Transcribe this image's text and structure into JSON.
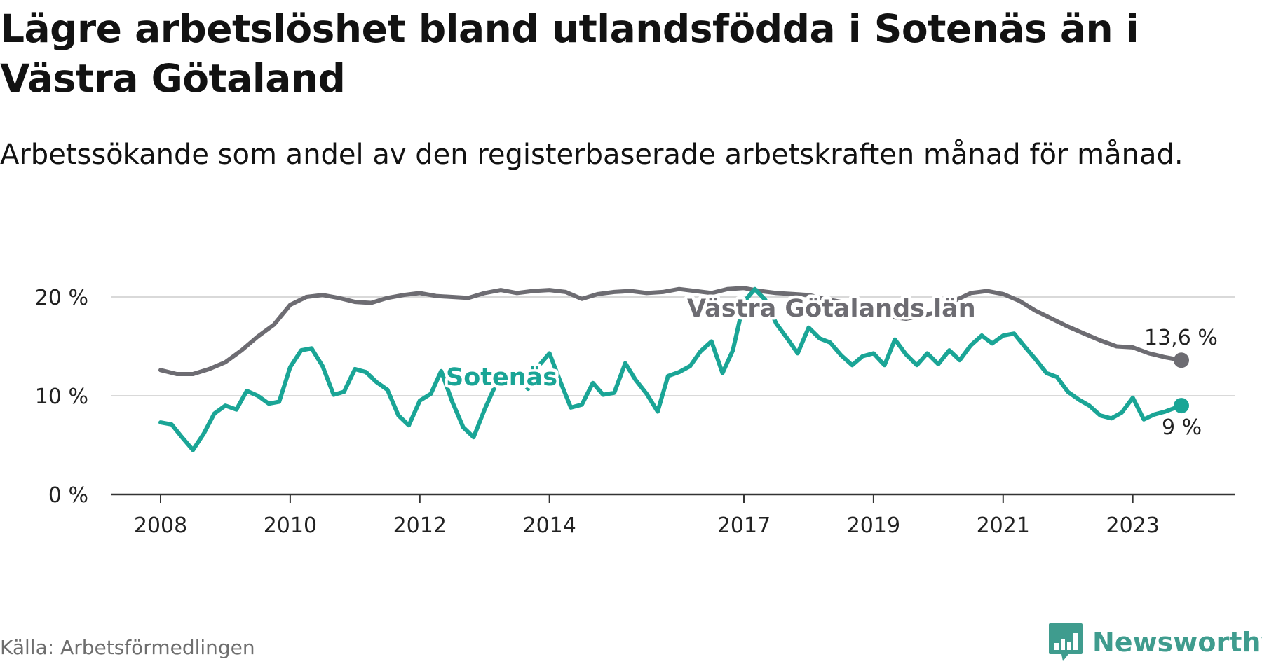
{
  "header": {
    "title": "Lägre arbetslöshet bland utlandsfödda i Sotenäs än i Västra Götaland",
    "subtitle": "Arbetssökande som andel av den registerbaserade arbetskraften månad för månad."
  },
  "footer": {
    "source": "Källa: Arbetsförmedlingen",
    "brand": "Newsworthy"
  },
  "colors": {
    "region": "#6d6c72",
    "municipality": "#1aa596",
    "grid": "#d9d9d9",
    "axis": "#333333",
    "brand": "#3f9c8e"
  },
  "chart_data": {
    "type": "line",
    "title": "Lägre arbetslöshet bland utlandsfödda i Sotenäs än i Västra Götaland",
    "subtitle": "Arbetssökande som andel av den registerbaserade arbetskraften månad för månad.",
    "xlabel": "",
    "ylabel": "",
    "ylim": [
      0,
      22
    ],
    "xlim": [
      2007.8,
      2024.1
    ],
    "y_ticks": [
      0,
      10,
      20
    ],
    "y_tick_labels": [
      "0 %",
      "10 %",
      "20 %"
    ],
    "x_ticks": [
      2008,
      2010,
      2012,
      2014,
      2017,
      2019,
      2021,
      2023
    ],
    "x_tick_labels": [
      "2008",
      "2010",
      "2012",
      "2014",
      "2017",
      "2019",
      "2021",
      "2023"
    ],
    "grid": true,
    "series": [
      {
        "name": "Västra Götalands län",
        "label": "Västra Götalands län",
        "color": "#6d6c72",
        "end_label": "13,6 %",
        "points": [
          [
            2008.0,
            12.6
          ],
          [
            2008.25,
            12.2
          ],
          [
            2008.5,
            12.2
          ],
          [
            2008.75,
            12.7
          ],
          [
            2009.0,
            13.4
          ],
          [
            2009.25,
            14.6
          ],
          [
            2009.5,
            16.0
          ],
          [
            2009.75,
            17.2
          ],
          [
            2010.0,
            19.2
          ],
          [
            2010.25,
            20.0
          ],
          [
            2010.5,
            20.2
          ],
          [
            2010.75,
            19.9
          ],
          [
            2011.0,
            19.5
          ],
          [
            2011.25,
            19.4
          ],
          [
            2011.5,
            19.9
          ],
          [
            2011.75,
            20.2
          ],
          [
            2012.0,
            20.4
          ],
          [
            2012.25,
            20.1
          ],
          [
            2012.5,
            20.0
          ],
          [
            2012.75,
            19.9
          ],
          [
            2013.0,
            20.4
          ],
          [
            2013.25,
            20.7
          ],
          [
            2013.5,
            20.4
          ],
          [
            2013.75,
            20.6
          ],
          [
            2014.0,
            20.7
          ],
          [
            2014.25,
            20.5
          ],
          [
            2014.5,
            19.8
          ],
          [
            2014.75,
            20.3
          ],
          [
            2015.0,
            20.5
          ],
          [
            2015.25,
            20.6
          ],
          [
            2015.5,
            20.4
          ],
          [
            2015.75,
            20.5
          ],
          [
            2016.0,
            20.8
          ],
          [
            2016.25,
            20.6
          ],
          [
            2016.5,
            20.4
          ],
          [
            2016.75,
            20.8
          ],
          [
            2017.0,
            20.9
          ],
          [
            2017.25,
            20.6
          ],
          [
            2017.5,
            20.4
          ],
          [
            2017.75,
            20.3
          ],
          [
            2018.0,
            20.2
          ],
          [
            2018.25,
            19.8
          ],
          [
            2018.5,
            19.5
          ],
          [
            2018.75,
            18.9
          ],
          [
            2019.0,
            18.6
          ],
          [
            2019.25,
            18.0
          ],
          [
            2019.5,
            17.8
          ],
          [
            2019.75,
            18.1
          ],
          [
            2020.0,
            18.5
          ],
          [
            2020.25,
            19.6
          ],
          [
            2020.5,
            20.4
          ],
          [
            2020.75,
            20.6
          ],
          [
            2021.0,
            20.3
          ],
          [
            2021.25,
            19.6
          ],
          [
            2021.5,
            18.6
          ],
          [
            2021.75,
            17.8
          ],
          [
            2022.0,
            17.0
          ],
          [
            2022.25,
            16.3
          ],
          [
            2022.5,
            15.6
          ],
          [
            2022.75,
            15.0
          ],
          [
            2023.0,
            14.9
          ],
          [
            2023.25,
            14.3
          ],
          [
            2023.5,
            13.9
          ],
          [
            2023.75,
            13.6
          ]
        ]
      },
      {
        "name": "Sotenäs",
        "label": "Sotenäs",
        "color": "#1aa596",
        "end_label": "9 %",
        "points": [
          [
            2008.0,
            7.3
          ],
          [
            2008.17,
            7.1
          ],
          [
            2008.33,
            5.8
          ],
          [
            2008.5,
            4.5
          ],
          [
            2008.67,
            6.2
          ],
          [
            2008.83,
            8.2
          ],
          [
            2009.0,
            9.0
          ],
          [
            2009.17,
            8.6
          ],
          [
            2009.33,
            10.5
          ],
          [
            2009.5,
            10.0
          ],
          [
            2009.67,
            9.2
          ],
          [
            2009.83,
            9.4
          ],
          [
            2010.0,
            12.9
          ],
          [
            2010.17,
            14.6
          ],
          [
            2010.33,
            14.8
          ],
          [
            2010.5,
            13.0
          ],
          [
            2010.67,
            10.1
          ],
          [
            2010.83,
            10.4
          ],
          [
            2011.0,
            12.7
          ],
          [
            2011.17,
            12.4
          ],
          [
            2011.33,
            11.4
          ],
          [
            2011.5,
            10.6
          ],
          [
            2011.67,
            8.0
          ],
          [
            2011.83,
            7.0
          ],
          [
            2012.0,
            9.5
          ],
          [
            2012.17,
            10.2
          ],
          [
            2012.33,
            12.5
          ],
          [
            2012.5,
            9.4
          ],
          [
            2012.67,
            6.8
          ],
          [
            2012.83,
            5.8
          ],
          [
            2013.0,
            8.6
          ],
          [
            2013.17,
            11.1
          ],
          [
            2013.33,
            11.4
          ],
          [
            2013.5,
            12.1
          ],
          [
            2013.67,
            10.7
          ],
          [
            2013.83,
            13.0
          ],
          [
            2014.0,
            14.3
          ],
          [
            2014.17,
            11.4
          ],
          [
            2014.33,
            8.8
          ],
          [
            2014.5,
            9.1
          ],
          [
            2014.67,
            11.3
          ],
          [
            2014.83,
            10.1
          ],
          [
            2015.0,
            10.3
          ],
          [
            2015.17,
            13.3
          ],
          [
            2015.33,
            11.6
          ],
          [
            2015.5,
            10.2
          ],
          [
            2015.67,
            8.4
          ],
          [
            2015.83,
            12.0
          ],
          [
            2016.0,
            12.4
          ],
          [
            2016.17,
            13.0
          ],
          [
            2016.33,
            14.5
          ],
          [
            2016.5,
            15.5
          ],
          [
            2016.67,
            12.3
          ],
          [
            2016.83,
            14.6
          ],
          [
            2017.0,
            19.5
          ],
          [
            2017.17,
            20.8
          ],
          [
            2017.33,
            19.7
          ],
          [
            2017.5,
            17.3
          ],
          [
            2017.67,
            15.8
          ],
          [
            2017.83,
            14.3
          ],
          [
            2018.0,
            16.9
          ],
          [
            2018.17,
            15.8
          ],
          [
            2018.33,
            15.4
          ],
          [
            2018.5,
            14.1
          ],
          [
            2018.67,
            13.1
          ],
          [
            2018.83,
            14.0
          ],
          [
            2019.0,
            14.3
          ],
          [
            2019.17,
            13.1
          ],
          [
            2019.33,
            15.7
          ],
          [
            2019.5,
            14.2
          ],
          [
            2019.67,
            13.1
          ],
          [
            2019.83,
            14.3
          ],
          [
            2020.0,
            13.2
          ],
          [
            2020.17,
            14.6
          ],
          [
            2020.33,
            13.6
          ],
          [
            2020.5,
            15.1
          ],
          [
            2020.67,
            16.1
          ],
          [
            2020.83,
            15.3
          ],
          [
            2021.0,
            16.1
          ],
          [
            2021.17,
            16.3
          ],
          [
            2021.33,
            15.0
          ],
          [
            2021.5,
            13.7
          ],
          [
            2021.67,
            12.3
          ],
          [
            2021.83,
            11.9
          ],
          [
            2022.0,
            10.4
          ],
          [
            2022.17,
            9.6
          ],
          [
            2022.33,
            9.0
          ],
          [
            2022.5,
            8.0
          ],
          [
            2022.67,
            7.7
          ],
          [
            2022.83,
            8.3
          ],
          [
            2023.0,
            9.8
          ],
          [
            2023.17,
            7.6
          ],
          [
            2023.33,
            8.1
          ],
          [
            2023.5,
            8.4
          ],
          [
            2023.75,
            9.0
          ]
        ]
      }
    ]
  }
}
